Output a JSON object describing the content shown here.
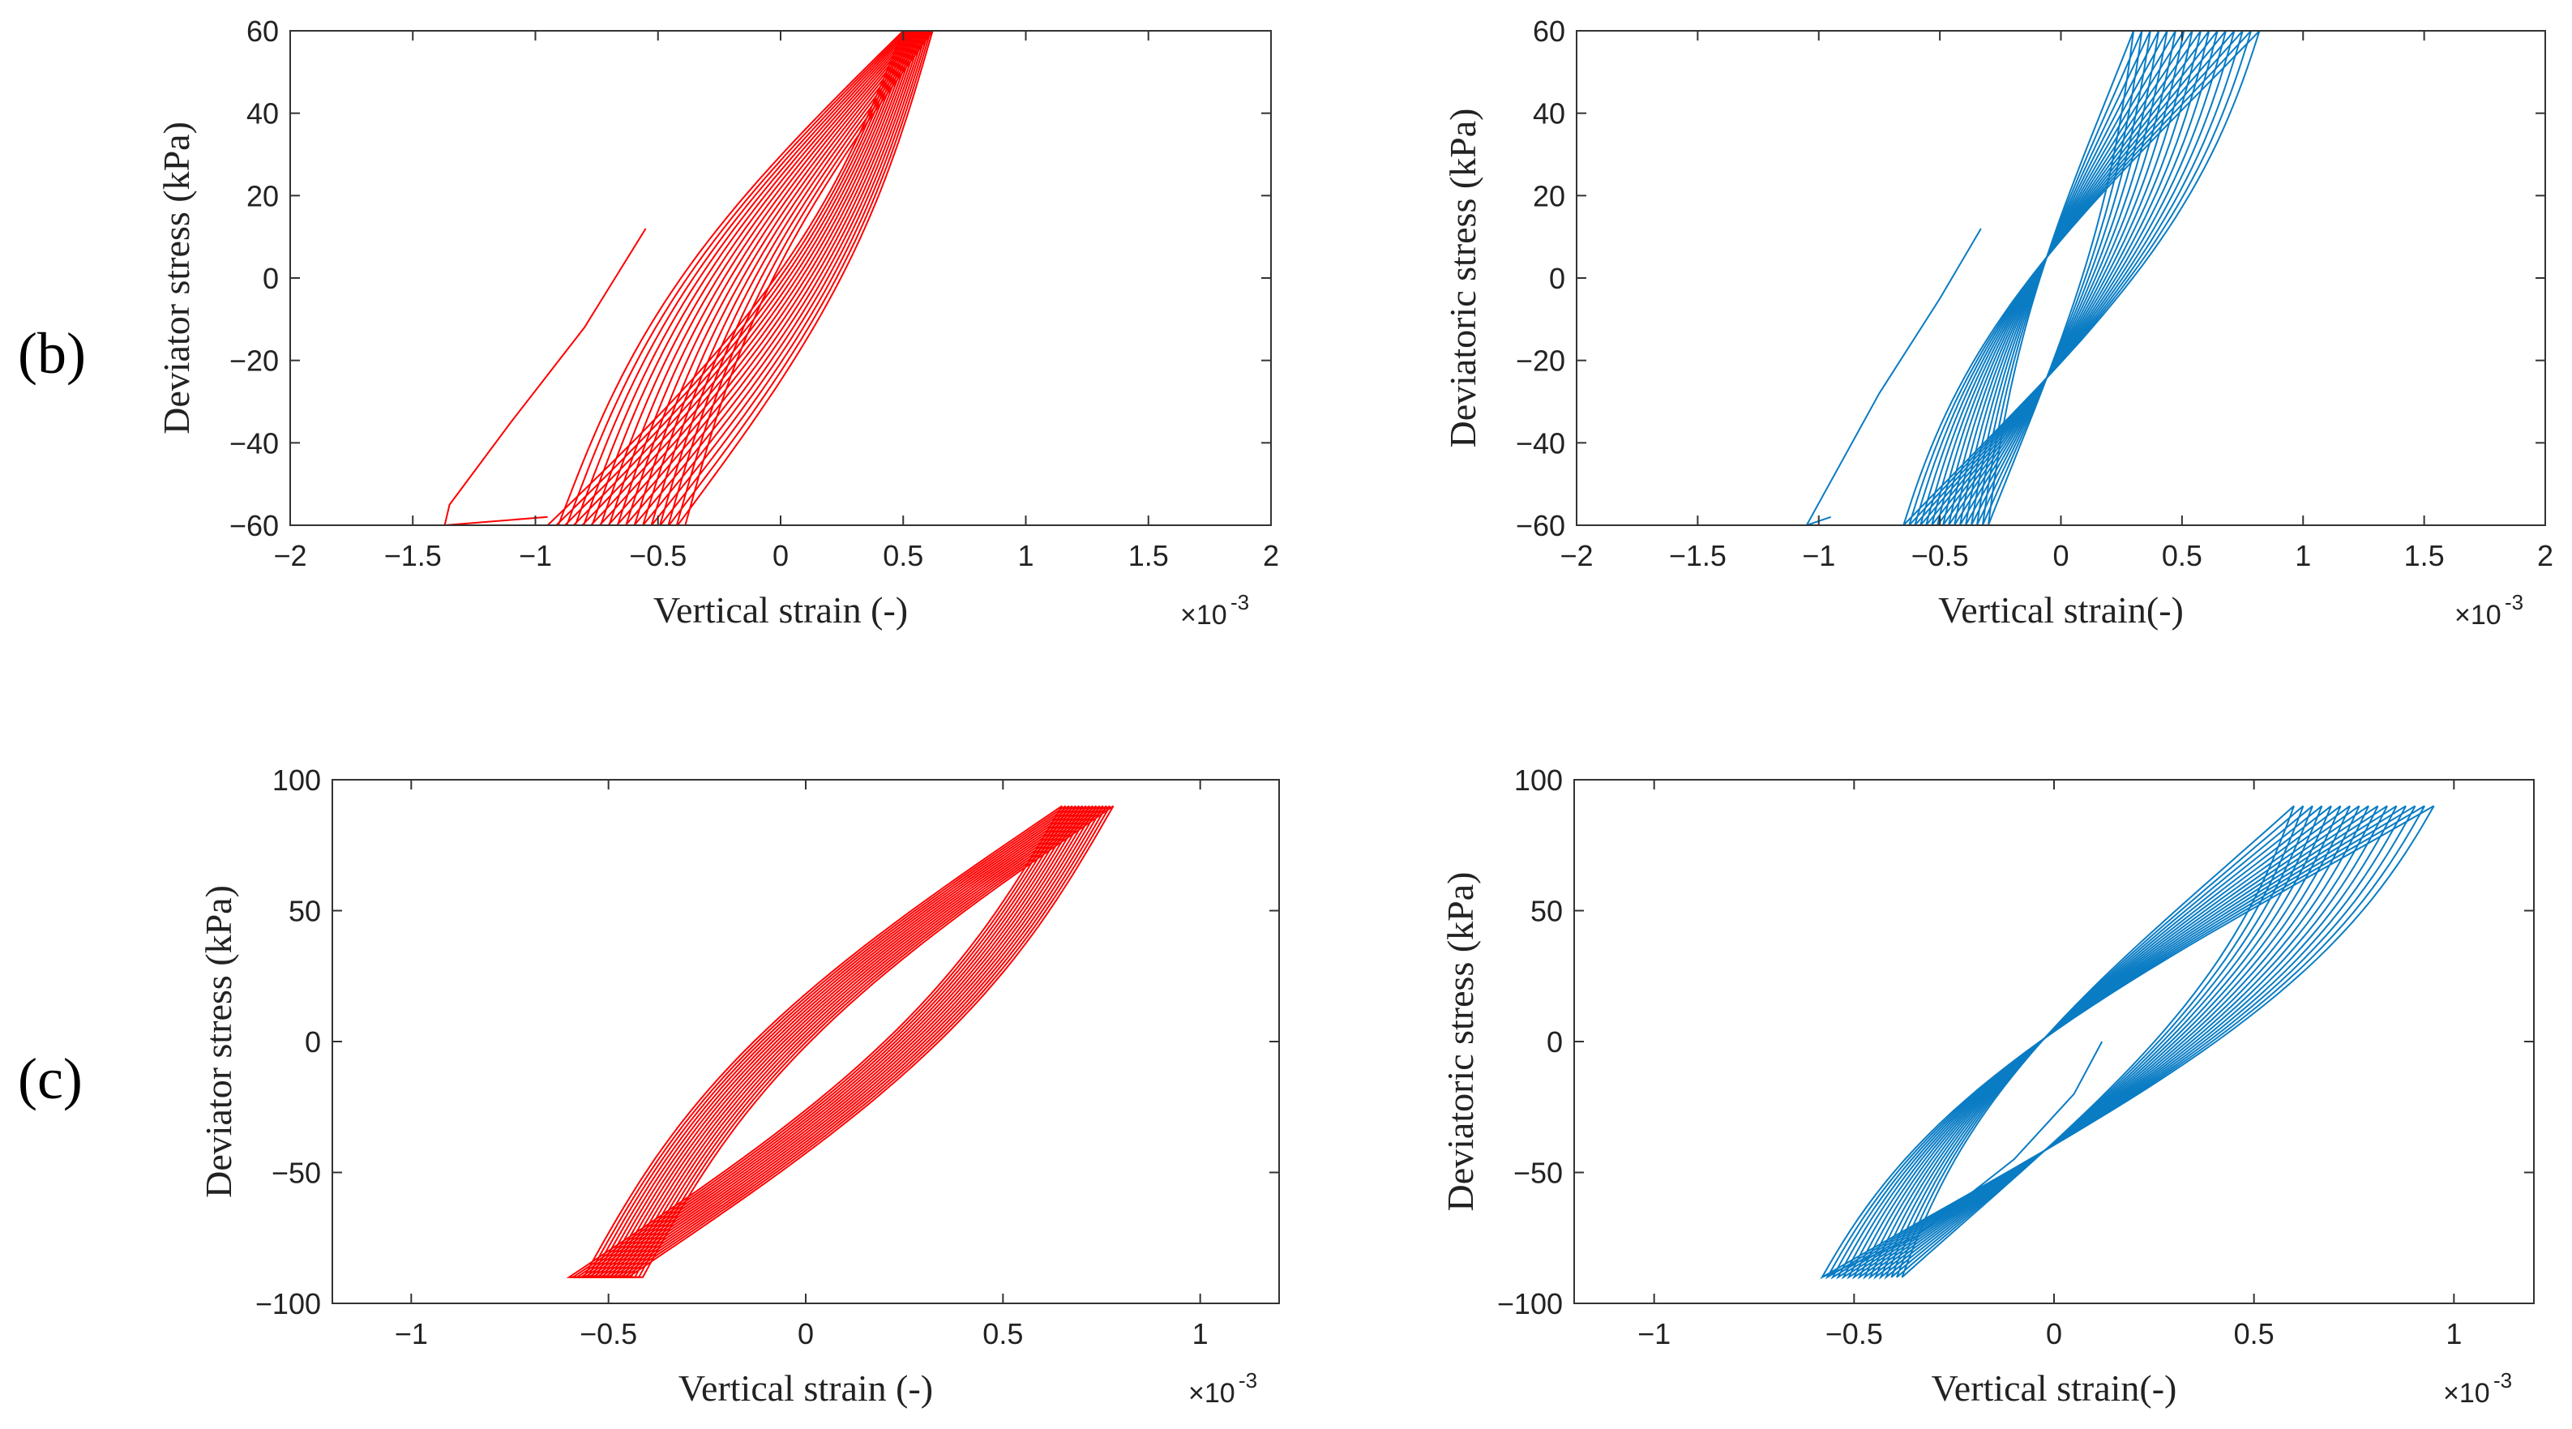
{
  "row_labels": [
    "(b)",
    "(c)"
  ],
  "colors": {
    "experiment": "#ff0000",
    "model": "#0a7cc4",
    "axis": "#333333"
  },
  "chart_data": [
    {
      "type": "line",
      "panel": "b-left",
      "xlabel": "Vertical strain (-)",
      "ylabel": "Deviator stress (kPa)",
      "x_multiplier_label": "×10",
      "x_multiplier_exp": "-3",
      "xlim": [
        -2,
        2
      ],
      "ylim": [
        -60,
        60
      ],
      "xticks": [
        -2,
        -1.5,
        -1,
        -0.5,
        0,
        0.5,
        1,
        1.5,
        2
      ],
      "xtick_labels": [
        "−2",
        "−1.5",
        "−1",
        "−0.5",
        "0",
        "0.5",
        "1",
        "1.5",
        "2"
      ],
      "yticks": [
        -60,
        -40,
        -20,
        0,
        20,
        40,
        60
      ],
      "ytick_labels": [
        "−60",
        "−40",
        "−20",
        "0",
        "20",
        "40",
        "60"
      ],
      "color_key": "experiment",
      "style": "experiment",
      "loops": {
        "count": 16,
        "x_max_start": 0.5,
        "x_max_end": 0.62,
        "x_min_start": -0.95,
        "x_min_end": -0.42,
        "y_max": 60,
        "y_min": -60
      },
      "initial_branch": [
        [
          -0.55,
          12
        ],
        [
          -0.8,
          -12
        ],
        [
          -1.1,
          -35
        ],
        [
          -1.35,
          -55
        ],
        [
          -1.37,
          -60
        ],
        [
          -0.95,
          -58
        ]
      ]
    },
    {
      "type": "line",
      "panel": "b-right",
      "xlabel": "Vertical strain(-)",
      "ylabel": "Deviatoric stress (kPa)",
      "x_multiplier_label": "×10",
      "x_multiplier_exp": "-3",
      "xlim": [
        -2,
        2
      ],
      "ylim": [
        -60,
        60
      ],
      "xticks": [
        -2,
        -1.5,
        -1,
        -0.5,
        0,
        0.5,
        1,
        1.5,
        2
      ],
      "xtick_labels": [
        "−2",
        "−1.5",
        "−1",
        "−0.5",
        "0",
        "0.5",
        "1",
        "1.5",
        "2"
      ],
      "yticks": [
        -60,
        -40,
        -20,
        0,
        20,
        40,
        60
      ],
      "ytick_labels": [
        "−60",
        "−40",
        "−20",
        "0",
        "20",
        "40",
        "60"
      ],
      "color_key": "model",
      "style": "model",
      "loops": {
        "count": 16,
        "x_max_start": 0.82,
        "x_max_end": 0.3,
        "x_min_start": -0.65,
        "x_min_end": -0.3,
        "y_max": 60,
        "y_min": -60
      },
      "initial_branch": [
        [
          -0.33,
          12
        ],
        [
          -0.5,
          -5
        ],
        [
          -0.75,
          -28
        ],
        [
          -1.05,
          -60
        ],
        [
          -0.95,
          -58
        ]
      ]
    },
    {
      "type": "line",
      "panel": "c-left",
      "xlabel": "Vertical strain (-)",
      "ylabel": "Deviator stress (kPa)",
      "x_multiplier_label": "×10",
      "x_multiplier_exp": "-3",
      "xlim": [
        -1.2,
        1.2
      ],
      "ylim": [
        -100,
        100
      ],
      "xticks": [
        -1,
        -0.5,
        0,
        0.5,
        1
      ],
      "xtick_labels": [
        "−1",
        "−0.5",
        "0",
        "0.5",
        "1"
      ],
      "yticks": [
        -100,
        -50,
        0,
        50,
        100
      ],
      "ytick_labels": [
        "−100",
        "−50",
        "0",
        "50",
        "100"
      ],
      "color_key": "experiment",
      "style": "experiment",
      "loops": {
        "count": 16,
        "x_max_start": 0.65,
        "x_max_end": 0.78,
        "x_min_start": -0.6,
        "x_min_end": -0.45,
        "y_max": 90,
        "y_min": -90
      },
      "initial_branch": []
    },
    {
      "type": "line",
      "panel": "c-right",
      "xlabel": "Vertical strain(-)",
      "ylabel": "Deviatoric stress (kPa)",
      "x_multiplier_label": "×10",
      "x_multiplier_exp": "-3",
      "xlim": [
        -1.2,
        1.2
      ],
      "ylim": [
        -100,
        100
      ],
      "xticks": [
        -1,
        -0.5,
        0,
        0.5,
        1
      ],
      "xtick_labels": [
        "−1",
        "−0.5",
        "0",
        "0.5",
        "1"
      ],
      "yticks": [
        -100,
        -50,
        0,
        50,
        100
      ],
      "ytick_labels": [
        "−100",
        "−50",
        "0",
        "50",
        "100"
      ],
      "color_key": "model",
      "style": "model",
      "loops": {
        "count": 16,
        "x_max_start": 0.95,
        "x_max_end": 0.6,
        "x_min_start": -0.58,
        "x_min_end": -0.38,
        "y_max": 90,
        "y_min": -90
      },
      "initial_branch": [
        [
          0.12,
          0
        ],
        [
          0.05,
          -20
        ],
        [
          -0.1,
          -45
        ],
        [
          -0.35,
          -75
        ],
        [
          -0.58,
          -90
        ]
      ]
    }
  ]
}
